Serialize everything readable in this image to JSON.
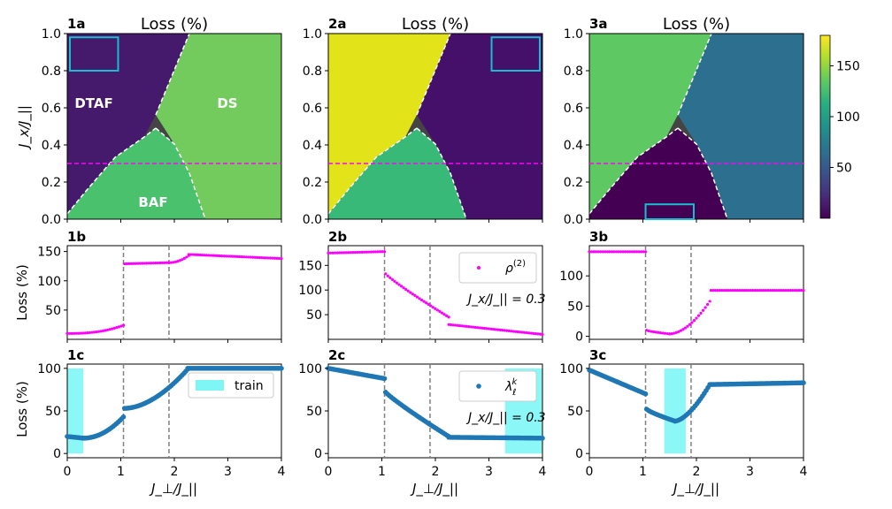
{
  "chart_data": {
    "type": "heatmap",
    "colorbar": {
      "ticks": [
        50,
        100,
        150
      ],
      "min": 0,
      "max": 180,
      "colormap": "viridis"
    },
    "ylabel_heat": "J_x/J_||",
    "ylabel_loss": "Loss (%)",
    "xlabel": "J_⊥/J_||",
    "x_ticks": [
      0,
      1,
      2,
      3,
      4
    ],
    "heat_y_ticks": [
      "0.0",
      "0.2",
      "0.4",
      "0.6",
      "0.8",
      "1.0"
    ],
    "guide_line_y": 0.3,
    "transitions_x": [
      1.05,
      1.9
    ],
    "colors": {
      "magenta": "#ff00ff",
      "blue": "#1f77b4",
      "cyan_box": "#17becf",
      "train_fill": "#7ff6f6",
      "dash_gray": "#808080"
    },
    "columns": [
      {
        "heat": {
          "tag": "1a",
          "title": "Loss (%)",
          "region_values": {
            "DTAF": 8,
            "BAF": 140,
            "DS": 148
          },
          "phase_labels": [
            {
              "text": "DTAF",
              "x": 0.5,
              "y": 0.6
            },
            {
              "text": "DS",
              "x": 3.0,
              "y": 0.6
            },
            {
              "text": "BAF",
              "x": 1.6,
              "y": 0.08
            }
          ],
          "box": {
            "x0": 0.05,
            "x1": 0.95,
            "y0": 0.8,
            "y1": 0.98
          }
        },
        "rho": {
          "tag": "1b",
          "yticks": [
            50,
            100,
            150
          ],
          "ylim": [
            0,
            160
          ],
          "segments": [
            {
              "x0": 0.0,
              "x1": 1.05,
              "y0": 10,
              "y1": 24,
              "curve": 2.5
            },
            {
              "x0": 1.07,
              "x1": 1.9,
              "y0": 129,
              "y1": 131,
              "curve": 1
            },
            {
              "x0": 1.9,
              "x1": 2.27,
              "y0": 131,
              "y1": 143,
              "curve": 2
            },
            {
              "x0": 2.27,
              "x1": 4.0,
              "y0": 145,
              "y1": 138,
              "curve": 1
            }
          ]
        },
        "lam": {
          "tag": "1c",
          "yticks": [
            0,
            50,
            100
          ],
          "ylim": [
            -5,
            105
          ],
          "legend": "train",
          "train_bands": [
            [
              0.0,
              0.3
            ]
          ],
          "segments": [
            {
              "x0": 0.0,
              "x1": 0.3,
              "y0": 20,
              "y1": 18,
              "curve": 1
            },
            {
              "x0": 0.3,
              "x1": 1.05,
              "y0": 18,
              "y1": 43,
              "curve": 2
            },
            {
              "x0": 1.07,
              "x1": 2.25,
              "y0": 53,
              "y1": 99,
              "curve": 1.8
            },
            {
              "x0": 2.25,
              "x1": 4.0,
              "y0": 100,
              "y1": 100,
              "curve": 1
            }
          ]
        }
      },
      {
        "heat": {
          "tag": "2a",
          "title": "Loss (%)",
          "region_values": {
            "DTAF": 172,
            "BAF": 115,
            "DS": 20
          },
          "phase_labels": [],
          "box": {
            "x0": 3.05,
            "x1": 3.95,
            "y0": 0.8,
            "y1": 0.98
          }
        },
        "rho": {
          "tag": "2b",
          "yticks": [
            50,
            100,
            150
          ],
          "ylim": [
            0,
            190
          ],
          "legend": "ρ^(2)",
          "annotation": "J_x/J_|| = 0.3",
          "segments": [
            {
              "x0": 0.0,
              "x1": 1.05,
              "y0": 175,
              "y1": 178,
              "curve": 1
            },
            {
              "x0": 1.07,
              "x1": 2.25,
              "y0": 133,
              "y1": 45,
              "curve": 0.9
            },
            {
              "x0": 2.25,
              "x1": 4.0,
              "y0": 30,
              "y1": 10,
              "curve": 1
            }
          ]
        },
        "lam": {
          "tag": "2c",
          "yticks": [
            0,
            50,
            100
          ],
          "ylim": [
            -5,
            105
          ],
          "legend": "λ_ℓ^k",
          "annotation": "J_x/J_|| = 0.3",
          "train_bands": [
            [
              3.3,
              4.0
            ]
          ],
          "segments": [
            {
              "x0": 0.0,
              "x1": 1.05,
              "y0": 100,
              "y1": 88,
              "curve": 1
            },
            {
              "x0": 1.07,
              "x1": 2.25,
              "y0": 72,
              "y1": 20,
              "curve": 0.9
            },
            {
              "x0": 2.25,
              "x1": 4.0,
              "y0": 19,
              "y1": 18,
              "curve": 1
            }
          ]
        }
      },
      {
        "heat": {
          "tag": "3a",
          "title": "Loss (%)",
          "region_values": {
            "DTAF": 140,
            "BAF": 5,
            "DS": 75
          },
          "phase_labels": [],
          "box": {
            "x0": 1.05,
            "x1": 1.95,
            "y0": 0.0,
            "y1": 0.08
          }
        },
        "rho": {
          "tag": "3b",
          "yticks": [
            0,
            50,
            100
          ],
          "ylim": [
            -5,
            150
          ],
          "segments": [
            {
              "x0": 0.0,
              "x1": 1.05,
              "y0": 140,
              "y1": 140,
              "curve": 1
            },
            {
              "x0": 1.07,
              "x1": 1.5,
              "y0": 10,
              "y1": 4,
              "curve": 0.7
            },
            {
              "x0": 1.5,
              "x1": 2.25,
              "y0": 4,
              "y1": 58,
              "curve": 1.8
            },
            {
              "x0": 2.27,
              "x1": 4.0,
              "y0": 76,
              "y1": 76,
              "curve": 1
            }
          ]
        },
        "lam": {
          "tag": "3c",
          "yticks": [
            0,
            50,
            100
          ],
          "ylim": [
            -5,
            105
          ],
          "train_bands": [
            [
              1.4,
              1.8
            ]
          ],
          "segments": [
            {
              "x0": 0.0,
              "x1": 1.05,
              "y0": 98,
              "y1": 70,
              "curve": 1
            },
            {
              "x0": 1.07,
              "x1": 1.6,
              "y0": 52,
              "y1": 38,
              "curve": 0.8
            },
            {
              "x0": 1.6,
              "x1": 2.25,
              "y0": 38,
              "y1": 81,
              "curve": 1.6
            },
            {
              "x0": 2.25,
              "x1": 4.0,
              "y0": 81,
              "y1": 83,
              "curve": 1
            }
          ]
        }
      }
    ]
  }
}
